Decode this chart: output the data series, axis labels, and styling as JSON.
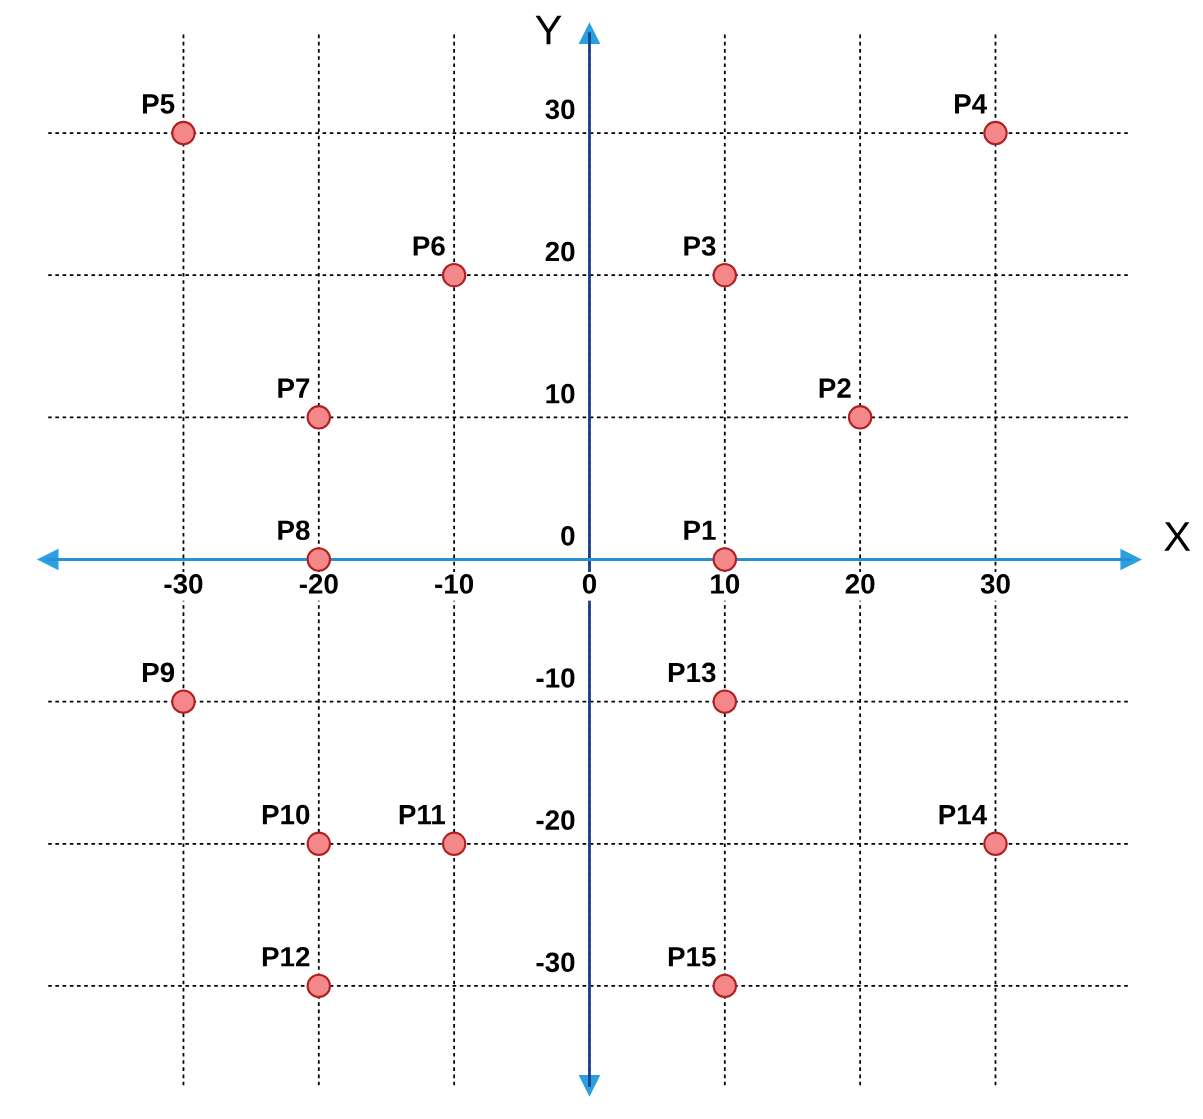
{
  "chart_data": {
    "type": "scatter",
    "xlabel": "X",
    "ylabel": "Y",
    "xlim": [
      -40,
      40
    ],
    "ylim": [
      -37,
      37
    ],
    "xticks": [
      -30,
      -20,
      -10,
      0,
      10,
      20,
      30
    ],
    "yticks": [
      -30,
      -20,
      -10,
      0,
      10,
      20,
      30
    ],
    "grid": true,
    "legend": false,
    "marker": "circle",
    "series": [
      {
        "name": "P1",
        "color": "#f4878a",
        "x": [
          10
        ],
        "values": [
          0
        ]
      },
      {
        "name": "P2",
        "color": "#f4878a",
        "x": [
          20
        ],
        "values": [
          10
        ]
      },
      {
        "name": "P3",
        "color": "#f4878a",
        "x": [
          10
        ],
        "values": [
          20
        ]
      },
      {
        "name": "P4",
        "color": "#f4878a",
        "x": [
          30
        ],
        "values": [
          30
        ]
      },
      {
        "name": "P5",
        "color": "#f4878a",
        "x": [
          -30
        ],
        "values": [
          30
        ]
      },
      {
        "name": "P6",
        "color": "#f4878a",
        "x": [
          -10
        ],
        "values": [
          20
        ]
      },
      {
        "name": "P7",
        "color": "#f4878a",
        "x": [
          -20
        ],
        "values": [
          10
        ]
      },
      {
        "name": "P8",
        "color": "#f4878a",
        "x": [
          -20
        ],
        "values": [
          0
        ]
      },
      {
        "name": "P9",
        "color": "#f4878a",
        "x": [
          -30
        ],
        "values": [
          -10
        ]
      },
      {
        "name": "P10",
        "color": "#f4878a",
        "x": [
          -20
        ],
        "values": [
          -20
        ]
      },
      {
        "name": "P11",
        "color": "#f4878a",
        "x": [
          -10
        ],
        "values": [
          -20
        ]
      },
      {
        "name": "P12",
        "color": "#f4878a",
        "x": [
          -20
        ],
        "values": [
          -30
        ]
      },
      {
        "name": "P13",
        "color": "#f4878a",
        "x": [
          10
        ],
        "values": [
          -10
        ]
      },
      {
        "name": "P14",
        "color": "#f4878a",
        "x": [
          30
        ],
        "values": [
          -20
        ]
      },
      {
        "name": "P15",
        "color": "#f4878a",
        "x": [
          10
        ],
        "values": [
          -30
        ]
      }
    ]
  }
}
